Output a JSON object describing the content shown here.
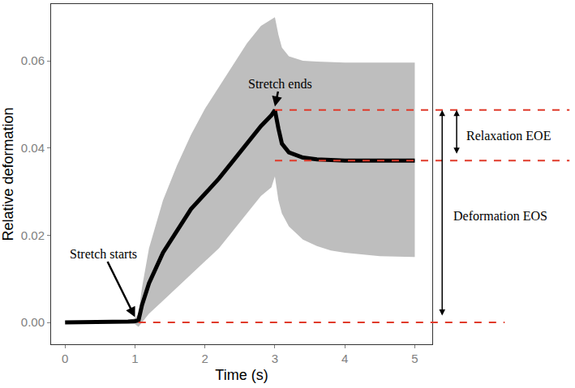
{
  "chart_data": {
    "type": "line",
    "x_label": "Time (s)",
    "y_label": "Relative deformation",
    "x": [
      0,
      0.5,
      0.9,
      1.0,
      1.05,
      1.1,
      1.2,
      1.4,
      1.6,
      1.8,
      2.0,
      2.2,
      2.4,
      2.6,
      2.8,
      2.95,
      3.0,
      3.05,
      3.1,
      3.2,
      3.4,
      3.6,
      3.8,
      4.0,
      4.5,
      5.0
    ],
    "values": [
      0,
      0,
      0.0002,
      0.0003,
      0.0005,
      0.004,
      0.009,
      0.016,
      0.021,
      0.026,
      0.0295,
      0.033,
      0.037,
      0.041,
      0.045,
      0.0475,
      0.0487,
      0.0445,
      0.041,
      0.039,
      0.0378,
      0.0374,
      0.0372,
      0.0371,
      0.0371,
      0.0371
    ],
    "color": "#000000",
    "band": {
      "color": "#bebebe",
      "upper": [
        0,
        0,
        0.0005,
        0.001,
        0.002,
        0.008,
        0.017,
        0.028,
        0.036,
        0.043,
        0.049,
        0.054,
        0.059,
        0.064,
        0.068,
        0.0695,
        0.07,
        0.066,
        0.063,
        0.061,
        0.06,
        0.0598,
        0.0597,
        0.0596,
        0.0596,
        0.0596
      ],
      "lower": [
        0,
        0,
        -0.0002,
        -0.0004,
        -0.001,
        0,
        0.002,
        0.005,
        0.008,
        0.011,
        0.014,
        0.017,
        0.021,
        0.025,
        0.029,
        0.031,
        0.0335,
        0.028,
        0.025,
        0.022,
        0.019,
        0.0175,
        0.0165,
        0.016,
        0.0152,
        0.015
      ]
    },
    "xlim": [
      -0.2,
      5.25
    ],
    "xticks": [
      0,
      1,
      2,
      3,
      4,
      5
    ],
    "ylim": [
      -0.005,
      0.073
    ],
    "yticks": [
      {
        "value": 0,
        "label": "0.00"
      },
      {
        "value": 0.02,
        "label": "0.02"
      },
      {
        "value": 0.04,
        "label": "0.04"
      },
      {
        "value": 0.06,
        "label": "0.06"
      }
    ],
    "grid": false,
    "annotations": [
      {
        "text": "Stretch starts",
        "text_x": 0.55,
        "text_y": 0.0158,
        "x": 1.0,
        "y": 0.0012
      },
      {
        "text": "Stretch ends",
        "text_x": 3.07,
        "text_y": 0.0548,
        "x": 3.0,
        "y": 0.0495
      }
    ],
    "reference_lines": [
      {
        "y": 0.0487,
        "x_start": 3.0,
        "color": "#e03a2a",
        "line_style": "dashed"
      },
      {
        "y": 0.0371,
        "x_start": 3.0,
        "color": "#e03a2a",
        "line_style": "dashed"
      },
      {
        "y": 0,
        "x_start": 1.05,
        "color": "#e03a2a",
        "line_style": "dashed"
      }
    ],
    "brackets": [
      {
        "label": "Deformation EOS",
        "from": 0,
        "to": 0.0487
      },
      {
        "label": "Relaxation EOE",
        "from": 0.0371,
        "to": 0.0487
      }
    ]
  }
}
